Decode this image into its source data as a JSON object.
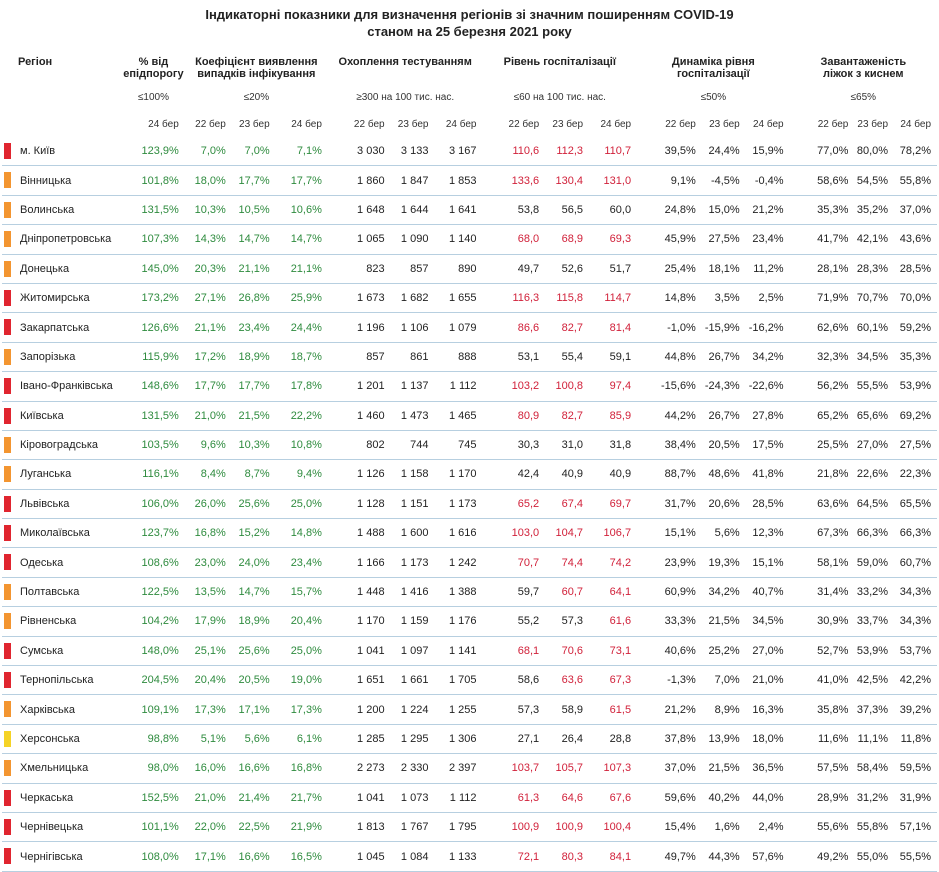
{
  "title_line1": "Індикаторні показники для визначення регіонів зі значним поширенням COVID-19",
  "title_line2": "станом на 25 березня 2021 року",
  "headers": {
    "region": "Регіон",
    "pct_threshold": "% від\nепідпорогу",
    "pct_threshold_limit": "≤100%",
    "coef": "Коефіцієнт виявлення\nвипадків інфікування",
    "coef_limit": "≤20%",
    "testing": "Охоплення тестуванням",
    "testing_limit": "≥300 на 100 тис. нас.",
    "hosp": "Рівень госпіталізації",
    "hosp_limit": "≤60 на 100 тис. нас.",
    "dyn": "Динаміка рівня\nгоспіталізації",
    "dyn_limit": "≤50%",
    "beds": "Завантаженість\nліжок з киснем",
    "beds_limit": "≤65%"
  },
  "days": {
    "d22": "22 бер",
    "d23": "23 бер",
    "d24": "24 бер"
  },
  "colors": {
    "red": "#e0252f",
    "orange": "#f39530",
    "yellow": "#f5d326",
    "green_text": "#2e8b3e",
    "red_text": "#d1213a"
  },
  "rows": [
    {
      "region": "м. Київ",
      "status": "red",
      "pct": "123,9%",
      "coef": [
        "7,0%",
        "7,0%",
        "7,1%"
      ],
      "test": [
        "3 030",
        "3 133",
        "3 167"
      ],
      "hosp": [
        "110,6",
        "112,3",
        "110,7"
      ],
      "dyn": [
        "39,5%",
        "24,4%",
        "15,9%"
      ],
      "beds": [
        "77,0%",
        "80,0%",
        "78,2%"
      ]
    },
    {
      "region": "Вінницька",
      "status": "orange",
      "pct": "101,8%",
      "coef": [
        "18,0%",
        "17,7%",
        "17,7%"
      ],
      "test": [
        "1 860",
        "1 847",
        "1 853"
      ],
      "hosp": [
        "133,6",
        "130,4",
        "131,0"
      ],
      "dyn": [
        "9,1%",
        "-4,5%",
        "-0,4%"
      ],
      "beds": [
        "58,6%",
        "54,5%",
        "55,8%"
      ]
    },
    {
      "region": "Волинська",
      "status": "orange",
      "pct": "131,5%",
      "coef": [
        "10,3%",
        "10,5%",
        "10,6%"
      ],
      "test": [
        "1 648",
        "1 644",
        "1 641"
      ],
      "hosp": [
        "53,8",
        "56,5",
        "60,0"
      ],
      "dyn": [
        "24,8%",
        "15,0%",
        "21,2%"
      ],
      "beds": [
        "35,3%",
        "35,2%",
        "37,0%"
      ]
    },
    {
      "region": "Дніпропетровська",
      "status": "orange",
      "pct": "107,3%",
      "coef": [
        "14,3%",
        "14,7%",
        "14,7%"
      ],
      "test": [
        "1 065",
        "1 090",
        "1 140"
      ],
      "hosp": [
        "68,0",
        "68,9",
        "69,3"
      ],
      "dyn": [
        "45,9%",
        "27,5%",
        "23,4%"
      ],
      "beds": [
        "41,7%",
        "42,1%",
        "43,6%"
      ]
    },
    {
      "region": "Донецька",
      "status": "orange",
      "pct": "145,0%",
      "coef": [
        "20,3%",
        "21,1%",
        "21,1%"
      ],
      "test": [
        "823",
        "857",
        "890"
      ],
      "hosp": [
        "49,7",
        "52,6",
        "51,7"
      ],
      "dyn": [
        "25,4%",
        "18,1%",
        "11,2%"
      ],
      "beds": [
        "28,1%",
        "28,3%",
        "28,5%"
      ]
    },
    {
      "region": "Житомирська",
      "status": "red",
      "pct": "173,2%",
      "coef": [
        "27,1%",
        "26,8%",
        "25,9%"
      ],
      "test": [
        "1 673",
        "1 682",
        "1 655"
      ],
      "hosp": [
        "116,3",
        "115,8",
        "114,7"
      ],
      "dyn": [
        "14,8%",
        "3,5%",
        "2,5%"
      ],
      "beds": [
        "71,9%",
        "70,7%",
        "70,0%"
      ]
    },
    {
      "region": "Закарпатська",
      "status": "red",
      "pct": "126,6%",
      "coef": [
        "21,1%",
        "23,4%",
        "24,4%"
      ],
      "test": [
        "1 196",
        "1 106",
        "1 079"
      ],
      "hosp": [
        "86,6",
        "82,7",
        "81,4"
      ],
      "dyn": [
        "-1,0%",
        "-15,9%",
        "-16,2%"
      ],
      "beds": [
        "62,6%",
        "60,1%",
        "59,2%"
      ]
    },
    {
      "region": "Запорізька",
      "status": "orange",
      "pct": "115,9%",
      "coef": [
        "17,2%",
        "18,9%",
        "18,7%"
      ],
      "test": [
        "857",
        "861",
        "888"
      ],
      "hosp": [
        "53,1",
        "55,4",
        "59,1"
      ],
      "dyn": [
        "44,8%",
        "26,7%",
        "34,2%"
      ],
      "beds": [
        "32,3%",
        "34,5%",
        "35,3%"
      ]
    },
    {
      "region": "Івано-Франківська",
      "status": "red",
      "pct": "148,6%",
      "coef": [
        "17,7%",
        "17,7%",
        "17,8%"
      ],
      "test": [
        "1 201",
        "1 137",
        "1 112"
      ],
      "hosp": [
        "103,2",
        "100,8",
        "97,4"
      ],
      "dyn": [
        "-15,6%",
        "-24,3%",
        "-22,6%"
      ],
      "beds": [
        "56,2%",
        "55,5%",
        "53,9%"
      ]
    },
    {
      "region": "Київська",
      "status": "red",
      "pct": "131,5%",
      "coef": [
        "21,0%",
        "21,5%",
        "22,2%"
      ],
      "test": [
        "1 460",
        "1 473",
        "1 465"
      ],
      "hosp": [
        "80,9",
        "82,7",
        "85,9"
      ],
      "dyn": [
        "44,2%",
        "26,7%",
        "27,8%"
      ],
      "beds": [
        "65,2%",
        "65,6%",
        "69,2%"
      ]
    },
    {
      "region": "Кіровоградська",
      "status": "orange",
      "pct": "103,5%",
      "coef": [
        "9,6%",
        "10,3%",
        "10,8%"
      ],
      "test": [
        "802",
        "744",
        "745"
      ],
      "hosp": [
        "30,3",
        "31,0",
        "31,8"
      ],
      "dyn": [
        "38,4%",
        "20,5%",
        "17,5%"
      ],
      "beds": [
        "25,5%",
        "27,0%",
        "27,5%"
      ]
    },
    {
      "region": "Луганська",
      "status": "orange",
      "pct": "116,1%",
      "coef": [
        "8,4%",
        "8,7%",
        "9,4%"
      ],
      "test": [
        "1 126",
        "1 158",
        "1 170"
      ],
      "hosp": [
        "42,4",
        "40,9",
        "40,9"
      ],
      "dyn": [
        "88,7%",
        "48,6%",
        "41,8%"
      ],
      "beds": [
        "21,8%",
        "22,6%",
        "22,3%"
      ]
    },
    {
      "region": "Львівська",
      "status": "red",
      "pct": "106,0%",
      "coef": [
        "26,0%",
        "25,6%",
        "25,0%"
      ],
      "test": [
        "1 128",
        "1 151",
        "1 173"
      ],
      "hosp": [
        "65,2",
        "67,4",
        "69,7"
      ],
      "dyn": [
        "31,7%",
        "20,6%",
        "28,5%"
      ],
      "beds": [
        "63,6%",
        "64,5%",
        "65,5%"
      ]
    },
    {
      "region": "Миколаївська",
      "status": "red",
      "pct": "123,7%",
      "coef": [
        "16,8%",
        "15,2%",
        "14,8%"
      ],
      "test": [
        "1 488",
        "1 600",
        "1 616"
      ],
      "hosp": [
        "103,0",
        "104,7",
        "106,7"
      ],
      "dyn": [
        "15,1%",
        "5,6%",
        "12,3%"
      ],
      "beds": [
        "67,3%",
        "66,3%",
        "66,3%"
      ]
    },
    {
      "region": "Одеська",
      "status": "red",
      "pct": "108,6%",
      "coef": [
        "23,0%",
        "24,0%",
        "23,4%"
      ],
      "test": [
        "1 166",
        "1 173",
        "1 242"
      ],
      "hosp": [
        "70,7",
        "74,4",
        "74,2"
      ],
      "dyn": [
        "23,9%",
        "19,3%",
        "15,1%"
      ],
      "beds": [
        "58,1%",
        "59,0%",
        "60,7%"
      ]
    },
    {
      "region": "Полтавська",
      "status": "orange",
      "pct": "122,5%",
      "coef": [
        "13,5%",
        "14,7%",
        "15,7%"
      ],
      "test": [
        "1 448",
        "1 416",
        "1 388"
      ],
      "hosp": [
        "59,7",
        "60,7",
        "64,1"
      ],
      "dyn": [
        "60,9%",
        "34,2%",
        "40,7%"
      ],
      "beds": [
        "31,4%",
        "33,2%",
        "34,3%"
      ]
    },
    {
      "region": "Рівненська",
      "status": "orange",
      "pct": "104,2%",
      "coef": [
        "17,9%",
        "18,9%",
        "20,4%"
      ],
      "test": [
        "1 170",
        "1 159",
        "1 176"
      ],
      "hosp": [
        "55,2",
        "57,3",
        "61,6"
      ],
      "dyn": [
        "33,3%",
        "21,5%",
        "34,5%"
      ],
      "beds": [
        "30,9%",
        "33,7%",
        "34,3%"
      ]
    },
    {
      "region": "Сумська",
      "status": "red",
      "pct": "148,0%",
      "coef": [
        "25,1%",
        "25,6%",
        "25,0%"
      ],
      "test": [
        "1 041",
        "1 097",
        "1 141"
      ],
      "hosp": [
        "68,1",
        "70,6",
        "73,1"
      ],
      "dyn": [
        "40,6%",
        "25,2%",
        "27,0%"
      ],
      "beds": [
        "52,7%",
        "53,9%",
        "53,7%"
      ]
    },
    {
      "region": "Тернопільська",
      "status": "red",
      "pct": "204,5%",
      "coef": [
        "20,4%",
        "20,5%",
        "19,0%"
      ],
      "test": [
        "1 651",
        "1 661",
        "1 705"
      ],
      "hosp": [
        "58,6",
        "63,6",
        "67,3"
      ],
      "dyn": [
        "-1,3%",
        "7,0%",
        "21,0%"
      ],
      "beds": [
        "41,0%",
        "42,5%",
        "42,2%"
      ]
    },
    {
      "region": "Харківська",
      "status": "orange",
      "pct": "109,1%",
      "coef": [
        "17,3%",
        "17,1%",
        "17,3%"
      ],
      "test": [
        "1 200",
        "1 224",
        "1 255"
      ],
      "hosp": [
        "57,3",
        "58,9",
        "61,5"
      ],
      "dyn": [
        "21,2%",
        "8,9%",
        "16,3%"
      ],
      "beds": [
        "35,8%",
        "37,3%",
        "39,2%"
      ]
    },
    {
      "region": "Херсонська",
      "status": "yellow",
      "pct": "98,8%",
      "coef": [
        "5,1%",
        "5,6%",
        "6,1%"
      ],
      "test": [
        "1 285",
        "1 295",
        "1 306"
      ],
      "hosp": [
        "27,1",
        "26,4",
        "28,8"
      ],
      "dyn": [
        "37,8%",
        "13,9%",
        "18,0%"
      ],
      "beds": [
        "11,6%",
        "11,1%",
        "11,8%"
      ]
    },
    {
      "region": "Хмельницька",
      "status": "orange",
      "pct": "98,0%",
      "coef": [
        "16,0%",
        "16,6%",
        "16,8%"
      ],
      "test": [
        "2 273",
        "2 330",
        "2 397"
      ],
      "hosp": [
        "103,7",
        "105,7",
        "107,3"
      ],
      "dyn": [
        "37,0%",
        "21,5%",
        "36,5%"
      ],
      "beds": [
        "57,5%",
        "58,4%",
        "59,5%"
      ]
    },
    {
      "region": "Черкаська",
      "status": "red",
      "pct": "152,5%",
      "coef": [
        "21,0%",
        "21,4%",
        "21,7%"
      ],
      "test": [
        "1 041",
        "1 073",
        "1 112"
      ],
      "hosp": [
        "61,3",
        "64,6",
        "67,6"
      ],
      "dyn": [
        "59,6%",
        "40,2%",
        "44,0%"
      ],
      "beds": [
        "28,9%",
        "31,2%",
        "31,9%"
      ]
    },
    {
      "region": "Чернівецька",
      "status": "red",
      "pct": "101,1%",
      "coef": [
        "22,0%",
        "22,5%",
        "21,9%"
      ],
      "test": [
        "1 813",
        "1 767",
        "1 795"
      ],
      "hosp": [
        "100,9",
        "100,9",
        "100,4"
      ],
      "dyn": [
        "15,4%",
        "1,6%",
        "2,4%"
      ],
      "beds": [
        "55,6%",
        "55,8%",
        "57,1%"
      ]
    },
    {
      "region": "Чернігівська",
      "status": "red",
      "pct": "108,0%",
      "coef": [
        "17,1%",
        "16,6%",
        "16,5%"
      ],
      "test": [
        "1 045",
        "1 084",
        "1 133"
      ],
      "hosp": [
        "72,1",
        "80,3",
        "84,1"
      ],
      "dyn": [
        "49,7%",
        "44,3%",
        "57,6%"
      ],
      "beds": [
        "49,2%",
        "55,0%",
        "55,5%"
      ]
    }
  ]
}
